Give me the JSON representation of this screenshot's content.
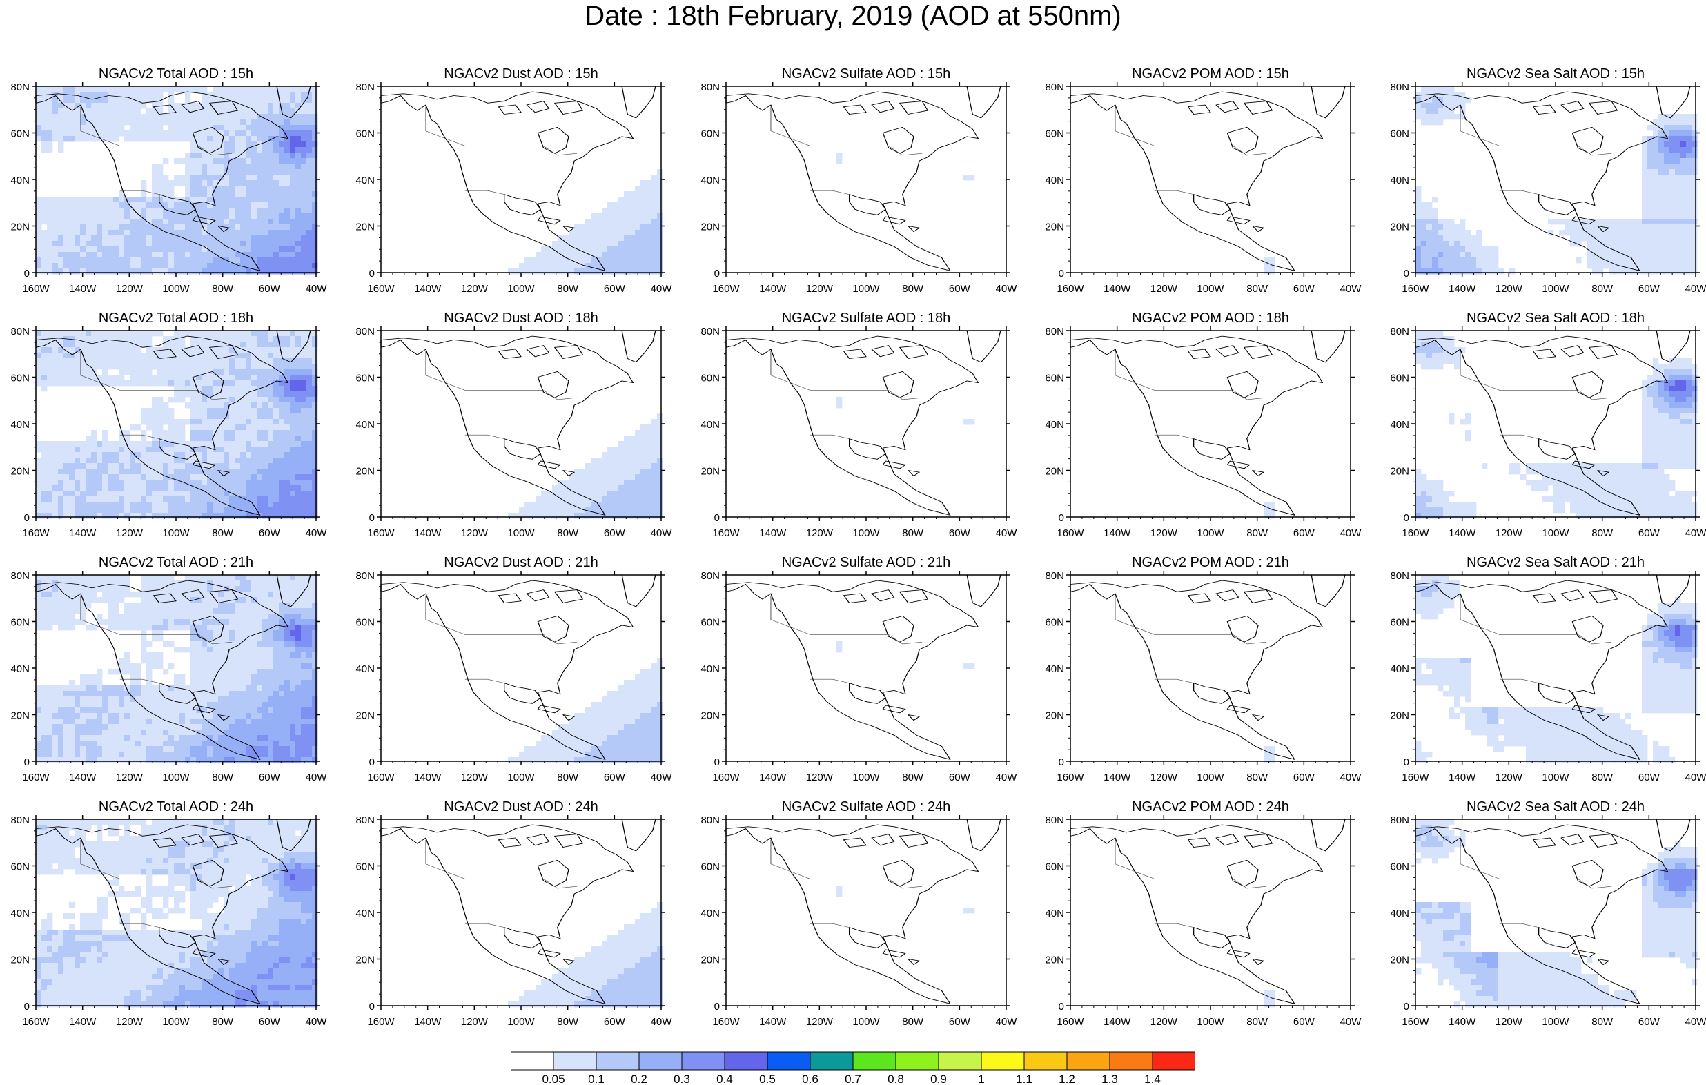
{
  "title": "Date : 18th February, 2019 (AOD at 550nm)",
  "lat_labels": [
    "80N",
    "60N",
    "40N",
    "20N",
    "0"
  ],
  "lon_labels": [
    "160W",
    "140W",
    "120W",
    "100W",
    "80W",
    "60W",
    "40W"
  ],
  "rows": [
    {
      "hour": "15h",
      "titles": [
        "NGACv2 Total AOD : 15h",
        "NGACv2 Dust AOD : 15h",
        "NGACv2 Sulfate AOD : 15h",
        "NGACv2 POM AOD : 15h",
        "NGACv2 Sea Salt AOD : 15h"
      ]
    },
    {
      "hour": "18h",
      "titles": [
        "NGACv2 Total AOD : 18h",
        "NGACv2 Dust AOD : 18h",
        "NGACv2 Sulfate AOD : 18h",
        "NGACv2 POM AOD : 18h",
        "NGACv2 Sea Salt AOD : 18h"
      ]
    },
    {
      "hour": "21h",
      "titles": [
        "NGACv2 Total AOD : 21h",
        "NGACv2 Dust AOD : 21h",
        "NGACv2 Sulfate AOD : 21h",
        "NGACv2 POM AOD : 21h",
        "NGACv2 Sea Salt AOD : 21h"
      ]
    },
    {
      "hour": "24h",
      "titles": [
        "NGACv2 Total AOD : 24h",
        "NGACv2 Dust AOD : 24h",
        "NGACv2 Sulfate AOD : 24h",
        "NGACv2 POM AOD : 24h",
        "NGACv2 Sea Salt  AOD : 24h"
      ]
    }
  ],
  "colorbar": {
    "colors": [
      "#ffffff",
      "#d7e3fb",
      "#b5c9f9",
      "#96b0f7",
      "#7f91f2",
      "#6366ea",
      "#0a5df2",
      "#0a9a9a",
      "#5be61e",
      "#8ff21e",
      "#c8f44a",
      "#fbf81a",
      "#fbc814",
      "#fba514",
      "#fa7a14",
      "#fa2814"
    ],
    "labels": [
      "0.05",
      "0.1",
      "0.2",
      "0.3",
      "0.4",
      "0.5",
      "0.6",
      "0.7",
      "0.8",
      "0.9",
      "1",
      "1.1",
      "1.2",
      "1.3",
      "1.4"
    ]
  }
}
